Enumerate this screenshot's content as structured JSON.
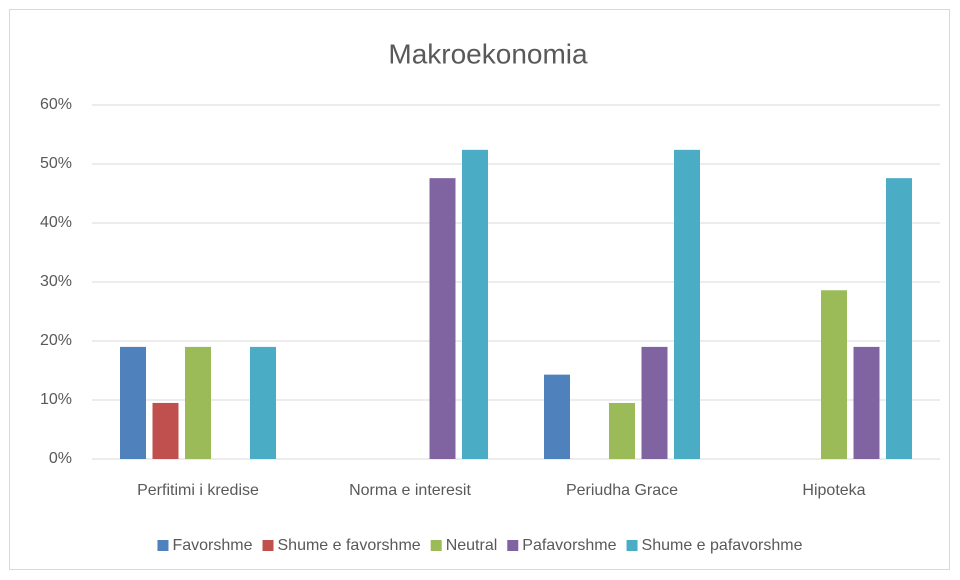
{
  "chart_data": {
    "type": "bar",
    "title": "Makroekonomia",
    "categories": [
      "Perfitimi i kredise",
      "Norma e interesit",
      "Periudha Grace",
      "Hipoteka"
    ],
    "series": [
      {
        "name": "Favorshme",
        "color": "#4f81bd",
        "values": [
          19.0,
          0,
          14.3,
          0
        ]
      },
      {
        "name": "Shume e favorshme",
        "color": "#c0504d",
        "values": [
          9.5,
          0,
          0,
          0
        ]
      },
      {
        "name": "Neutral",
        "color": "#9bbb59",
        "values": [
          19.0,
          0,
          9.5,
          28.6
        ]
      },
      {
        "name": "Pafavorshme",
        "color": "#8064a2",
        "values": [
          0,
          47.6,
          19.0,
          19.0
        ]
      },
      {
        "name": "Shume e pafavorshme",
        "color": "#4bacc6",
        "values": [
          19.0,
          52.4,
          52.4,
          47.6
        ]
      }
    ],
    "ylim": [
      0,
      60
    ],
    "yticks": [
      {
        "value": 0,
        "label": "0%"
      },
      {
        "value": 10,
        "label": "10%"
      },
      {
        "value": 20,
        "label": "20%"
      },
      {
        "value": 30,
        "label": "30%"
      },
      {
        "value": 40,
        "label": "40%"
      },
      {
        "value": 50,
        "label": "50%"
      },
      {
        "value": 60,
        "label": "60%"
      }
    ],
    "grid": true,
    "legend": "bottom"
  }
}
